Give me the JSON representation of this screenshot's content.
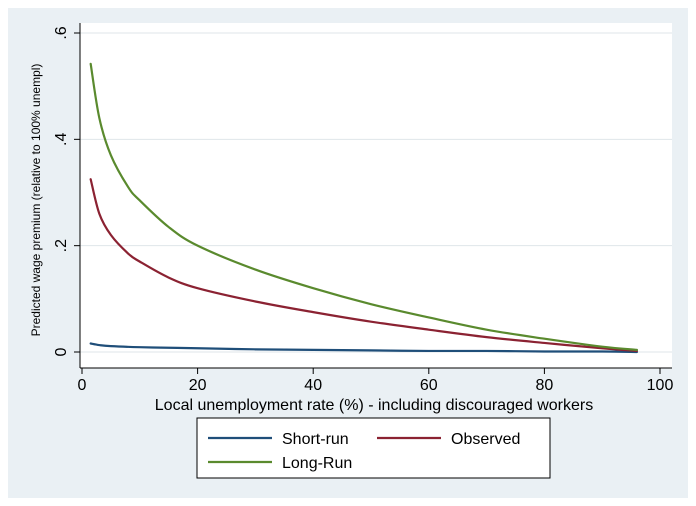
{
  "chart_data": {
    "type": "line",
    "title": "",
    "xlabel": "Local unemployment rate (%) - including discouraged workers",
    "ylabel": "Predicted wage premium (relative to 100% unempl)",
    "xlim": [
      0,
      100
    ],
    "ylim": [
      0,
      0.6
    ],
    "x_ticks": [
      {
        "value": 0,
        "label": "0"
      },
      {
        "value": 20,
        "label": "20"
      },
      {
        "value": 40,
        "label": "40"
      },
      {
        "value": 60,
        "label": "60"
      },
      {
        "value": 80,
        "label": "80"
      },
      {
        "value": 100,
        "label": "100"
      }
    ],
    "y_ticks": [
      {
        "value": 0,
        "label": "0"
      },
      {
        "value": 0.2,
        "label": ".2"
      },
      {
        "value": 0.4,
        "label": ".4"
      },
      {
        "value": 0.6,
        "label": ".6"
      }
    ],
    "grid": "horizontal",
    "legend_position": "bottom",
    "series": [
      {
        "name": "Short-run",
        "color": "#1f4e79",
        "x": [
          1.5,
          3,
          5,
          10,
          15,
          20,
          30,
          40,
          50,
          60,
          70,
          80,
          90,
          96
        ],
        "y": [
          0.016,
          0.013,
          0.011,
          0.009,
          0.008,
          0.007,
          0.005,
          0.004,
          0.003,
          0.002,
          0.002,
          0.001,
          0.001,
          0.0
        ]
      },
      {
        "name": "Observed",
        "color": "#8b2232",
        "x": [
          1.5,
          3,
          5,
          8,
          10,
          15,
          20,
          30,
          40,
          50,
          60,
          70,
          80,
          90,
          96
        ],
        "y": [
          0.325,
          0.26,
          0.22,
          0.185,
          0.17,
          0.14,
          0.12,
          0.095,
          0.075,
          0.057,
          0.042,
          0.028,
          0.017,
          0.007,
          0.002
        ]
      },
      {
        "name": "Long-Run",
        "color": "#5a8a2e",
        "x": [
          1.5,
          3,
          5,
          8,
          10,
          15,
          20,
          30,
          40,
          50,
          60,
          70,
          80,
          90,
          96
        ],
        "y": [
          0.542,
          0.44,
          0.37,
          0.31,
          0.285,
          0.235,
          0.2,
          0.155,
          0.12,
          0.09,
          0.065,
          0.042,
          0.025,
          0.01,
          0.004
        ]
      }
    ]
  },
  "colors": {
    "frame_background": "#eaf0f4",
    "plot_background": "#ffffff",
    "gridline": "#dfe6ea"
  }
}
